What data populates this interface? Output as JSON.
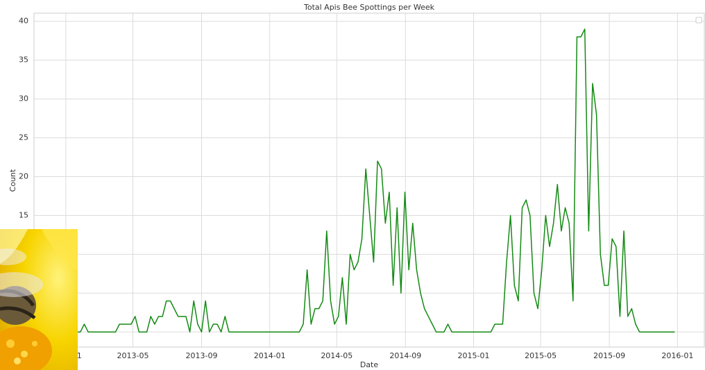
{
  "chart_data": {
    "type": "line",
    "title": "Total Apis Bee Spottings per Week",
    "x_label": "Date",
    "y_label": "Count",
    "color": "#138a13",
    "grid": true,
    "xlim": [
      "2012-11-05",
      "2016-02-18"
    ],
    "xticks": [
      "2013-01",
      "2013-05",
      "2013-09",
      "2014-01",
      "2014-05",
      "2014-09",
      "2015-01",
      "2015-05",
      "2015-09",
      "2016-01"
    ],
    "ylim": [
      -1.95,
      41.05
    ],
    "yticks": [
      0,
      5,
      10,
      15,
      20,
      25,
      30,
      35,
      40
    ],
    "x": [
      "2012-12-30",
      "2013-01-06",
      "2013-01-13",
      "2013-01-20",
      "2013-01-27",
      "2013-02-03",
      "2013-02-10",
      "2013-02-17",
      "2013-02-24",
      "2013-03-03",
      "2013-03-10",
      "2013-03-17",
      "2013-03-24",
      "2013-03-31",
      "2013-04-07",
      "2013-04-14",
      "2013-04-21",
      "2013-04-28",
      "2013-05-05",
      "2013-05-12",
      "2013-05-19",
      "2013-05-26",
      "2013-06-02",
      "2013-06-09",
      "2013-06-16",
      "2013-06-23",
      "2013-06-30",
      "2013-07-07",
      "2013-07-14",
      "2013-07-21",
      "2013-07-28",
      "2013-08-04",
      "2013-08-11",
      "2013-08-18",
      "2013-08-25",
      "2013-09-01",
      "2013-09-08",
      "2013-09-15",
      "2013-09-22",
      "2013-09-29",
      "2013-10-06",
      "2013-10-13",
      "2013-10-20",
      "2013-10-27",
      "2013-11-03",
      "2013-11-10",
      "2013-11-17",
      "2013-11-24",
      "2013-12-01",
      "2013-12-08",
      "2013-12-15",
      "2013-12-22",
      "2013-12-29",
      "2014-01-05",
      "2014-01-12",
      "2014-01-19",
      "2014-01-26",
      "2014-02-02",
      "2014-02-09",
      "2014-02-16",
      "2014-02-23",
      "2014-03-02",
      "2014-03-09",
      "2014-03-16",
      "2014-03-23",
      "2014-03-30",
      "2014-04-06",
      "2014-04-13",
      "2014-04-20",
      "2014-04-27",
      "2014-05-04",
      "2014-05-11",
      "2014-05-18",
      "2014-05-25",
      "2014-06-01",
      "2014-06-08",
      "2014-06-15",
      "2014-06-22",
      "2014-06-29",
      "2014-07-06",
      "2014-07-13",
      "2014-07-20",
      "2014-07-27",
      "2014-08-03",
      "2014-08-10",
      "2014-08-17",
      "2014-08-24",
      "2014-08-31",
      "2014-09-07",
      "2014-09-14",
      "2014-09-21",
      "2014-09-28",
      "2014-10-05",
      "2014-10-12",
      "2014-10-19",
      "2014-10-26",
      "2014-11-02",
      "2014-11-09",
      "2014-11-16",
      "2014-11-23",
      "2014-11-30",
      "2014-12-07",
      "2014-12-14",
      "2014-12-21",
      "2014-12-28",
      "2015-01-04",
      "2015-01-11",
      "2015-01-18",
      "2015-01-25",
      "2015-02-01",
      "2015-02-08",
      "2015-02-15",
      "2015-02-22",
      "2015-03-01",
      "2015-03-08",
      "2015-03-15",
      "2015-03-22",
      "2015-03-29",
      "2015-04-05",
      "2015-04-12",
      "2015-04-19",
      "2015-04-26",
      "2015-05-03",
      "2015-05-10",
      "2015-05-17",
      "2015-05-24",
      "2015-05-31",
      "2015-06-07",
      "2015-06-14",
      "2015-06-21",
      "2015-06-28",
      "2015-07-05",
      "2015-07-12",
      "2015-07-19",
      "2015-07-26",
      "2015-08-02",
      "2015-08-09",
      "2015-08-16",
      "2015-08-23",
      "2015-08-30",
      "2015-09-06",
      "2015-09-13",
      "2015-09-20",
      "2015-09-27",
      "2015-10-04",
      "2015-10-11",
      "2015-10-18",
      "2015-10-25",
      "2015-11-01",
      "2015-11-08",
      "2015-11-15",
      "2015-11-22",
      "2015-11-29",
      "2015-12-06",
      "2015-12-13",
      "2015-12-20",
      "2015-12-27"
    ],
    "values": [
      0,
      0,
      0,
      0,
      0,
      1,
      0,
      0,
      0,
      0,
      0,
      0,
      0,
      0,
      1,
      1,
      1,
      1,
      2,
      0,
      0,
      0,
      2,
      1,
      2,
      2,
      4,
      4,
      3,
      2,
      2,
      2,
      0,
      4,
      1,
      0,
      4,
      0,
      1,
      1,
      0,
      2,
      0,
      0,
      0,
      0,
      0,
      0,
      0,
      0,
      0,
      0,
      0,
      0,
      0,
      0,
      0,
      0,
      0,
      0,
      0,
      1,
      8,
      1,
      3,
      3,
      4,
      13,
      4,
      1,
      2,
      7,
      1,
      10,
      8,
      9,
      12,
      21,
      15,
      9,
      22,
      21,
      14,
      18,
      6,
      16,
      5,
      18,
      8,
      14,
      8,
      5,
      3,
      2,
      1,
      0,
      0,
      0,
      1,
      0,
      0,
      0,
      0,
      0,
      0,
      0,
      0,
      0,
      0,
      0,
      1,
      1,
      1,
      9,
      15,
      6,
      4,
      16,
      17,
      15,
      5,
      3,
      8,
      15,
      11,
      14,
      19,
      13,
      16,
      14,
      4,
      38,
      38,
      39,
      13,
      32,
      28,
      10,
      6,
      6,
      12,
      11,
      2,
      13,
      2,
      3,
      1,
      0,
      0,
      0,
      0,
      0,
      0,
      0,
      0,
      0,
      0
    ]
  }
}
